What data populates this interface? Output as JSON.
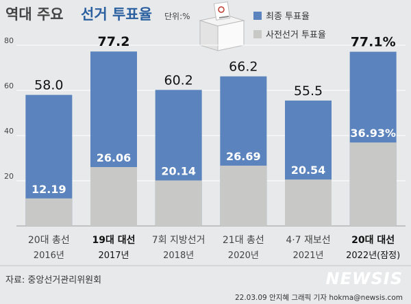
{
  "header": {
    "title_part1": "역대 주요",
    "title_part2": "선거 투표율",
    "unit": "단위:%"
  },
  "legend": {
    "final_label": "최종 투표율",
    "early_label": "사전선거 투표율"
  },
  "colors": {
    "final": "#5b84be",
    "early": "#c8c9c7",
    "background": "#e8e9ea"
  },
  "chart_data": {
    "type": "bar",
    "stacked_overlay": true,
    "ylim": [
      0,
      80
    ],
    "yticks": [
      20,
      40,
      60,
      80
    ],
    "grid": true,
    "legend_position": "top-right",
    "categories": [
      {
        "name": "20대 총선",
        "year": "2016년",
        "bold": false
      },
      {
        "name": "19대 대선",
        "year": "2017년",
        "bold": true
      },
      {
        "name": "7회 지방선거",
        "year": "2018년",
        "bold": false
      },
      {
        "name": "21대 총선",
        "year": "2020년",
        "bold": false
      },
      {
        "name": "4·7 재보선",
        "year": "2021년",
        "bold": false
      },
      {
        "name": "20대 대선",
        "year": "2022년(잠정)",
        "bold": true
      }
    ],
    "series": [
      {
        "name": "최종 투표율",
        "values": [
          58.0,
          77.2,
          60.2,
          66.2,
          55.5,
          77.1
        ],
        "labels": [
          "58.0",
          "77.2",
          "60.2",
          "66.2",
          "55.5",
          "77.1%"
        ]
      },
      {
        "name": "사전선거 투표율",
        "values": [
          12.19,
          26.06,
          20.14,
          26.69,
          20.54,
          36.93
        ],
        "labels": [
          "12.19",
          "26.06",
          "20.14",
          "26.69",
          "20.54",
          "36.93%"
        ]
      }
    ]
  },
  "footer": {
    "source": "자료: 중앙선거관리위원회",
    "credit": "22.03.09 안지혜 그래픽 기자 hokma@newsis.com",
    "logo": "NEWSIS"
  }
}
